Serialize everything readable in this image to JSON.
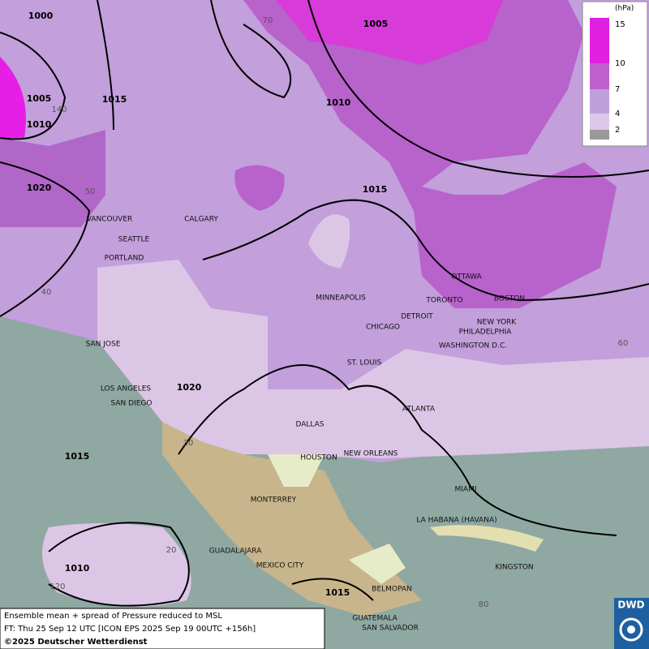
{
  "legend": {
    "unit": "(hPa)",
    "levels": [
      15,
      10,
      7,
      4,
      2
    ]
  },
  "cities": [
    "VANCOUVER",
    "CALGARY",
    "SEATTLE",
    "PORTLAND",
    "MINNEAPOLIS",
    "TORONTO",
    "OTTAWA",
    "DETROIT",
    "BOSTON",
    "NEW YORK",
    "PHILADELPHIA",
    "CHICAGO",
    "WASHINGTON D.C.",
    "SAN JOSE",
    "ST. LOUIS",
    "LOS ANGELES",
    "SAN DIEGO",
    "ATLANTA",
    "DALLAS",
    "HOUSTON",
    "NEW ORLEANS",
    "MIAMI",
    "MONTERREY",
    "LA HABANA (HAVANA)",
    "GUADALAJARA",
    "MEXICO CITY",
    "KINGSTON",
    "BELMOPAN",
    "GUATEMALA",
    "SAN SALVADOR"
  ],
  "isobars": [
    1000,
    1005,
    1015,
    1005,
    1010,
    1010,
    1020,
    1015,
    1020,
    1015,
    1010,
    1015
  ],
  "graticule": [
    70,
    140,
    50,
    40,
    60,
    30,
    20,
    120,
    80
  ],
  "footer": {
    "lines": [
      "Ensemble mean + spread of Pressure reduced to MSL",
      "FT: Thu 25 Sep 12 UTC [ICON EPS 2025 Sep 19 00UTC +156h]",
      "©2025 Deutscher Wetterdienst"
    ]
  },
  "logo": "DWD"
}
